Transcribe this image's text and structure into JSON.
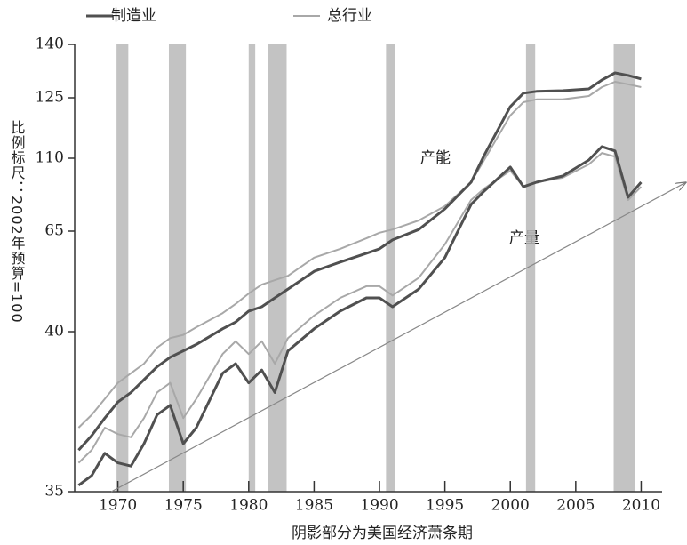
{
  "chart_data": {
    "type": "line",
    "y_label": "比例标尺：2002年预算=100",
    "x_label": "阴影部分为美国经济萧条期",
    "annotations": [
      "产能",
      "产量"
    ],
    "x": [
      1967,
      1968,
      1969,
      1970,
      1971,
      1972,
      1973,
      1974,
      1975,
      1976,
      1978,
      1979,
      1980,
      1981,
      1982,
      1983,
      1985,
      1987,
      1989,
      1990,
      1991,
      1993,
      1995,
      1997,
      1998,
      2000,
      2001,
      2002,
      2004,
      2006,
      2007,
      2008,
      2009,
      2010
    ],
    "series": [
      {
        "name": "总行业",
        "color": "#a8a8a8",
        "capacity": [
          37,
          37.4,
          37.9,
          38.4,
          38.7,
          39,
          39.5,
          39.8,
          39.9,
          41.1,
          44.6,
          46.9,
          49.5,
          51.7,
          52.8,
          53.9,
          58.4,
          60.6,
          63.2,
          64.6,
          66,
          71.6,
          80.4,
          95.2,
          108.9,
          120.6,
          123.9,
          124.6,
          124.6,
          125.5,
          128,
          129.5,
          128.8,
          128
        ],
        "output": [
          35.9,
          36.3,
          37,
          36.8,
          36.7,
          37.3,
          38.1,
          38.4,
          37.3,
          37.9,
          39.3,
          39.7,
          39.3,
          39.7,
          39,
          39.8,
          44,
          48.4,
          51.3,
          51.3,
          49,
          53.4,
          61.7,
          84.2,
          91.3,
          102.3,
          92.4,
          95.2,
          98,
          106.2,
          111.3,
          110.4,
          84.2,
          92.4
        ]
      },
      {
        "name": "制造业",
        "color": "#505050",
        "capacity": [
          36.3,
          36.75,
          37.3,
          37.8,
          38.1,
          38.5,
          38.9,
          39.2,
          39.4,
          39.6,
          40.7,
          42.4,
          45.1,
          46.2,
          48.4,
          50.6,
          55,
          57.3,
          59.5,
          60.6,
          62.8,
          66,
          78.7,
          95.2,
          110.7,
          122.8,
          126.3,
          126.8,
          127,
          127.5,
          130,
          132,
          131.3,
          130.3
        ],
        "output": [
          35.2,
          35.5,
          36.2,
          35.9,
          35.8,
          36.5,
          37.4,
          37.7,
          36.5,
          37,
          38.7,
          39,
          38.4,
          38.8,
          38.1,
          39.4,
          40.7,
          45.1,
          48.4,
          48.4,
          46.2,
          50.6,
          58.4,
          81.5,
          89.7,
          104.5,
          92.4,
          95.2,
          99,
          108.9,
          112.9,
          111.8,
          85.9,
          95.2
        ]
      }
    ],
    "recessions": [
      [
        1969.9,
        1970.8
      ],
      [
        1973.9,
        1975.2
      ],
      [
        1980.0,
        1980.5
      ],
      [
        1981.5,
        1982.9
      ],
      [
        1990.5,
        1991.2
      ],
      [
        2001.2,
        2001.9
      ],
      [
        2007.9,
        2009.5
      ]
    ],
    "recession_color": "#b8b8b8",
    "trend": {
      "x": [
        1969.5,
        2013.4
      ],
      "y": [
        35,
        95
      ]
    },
    "xlim": [
      1966.7,
      2011.6
    ],
    "xticks": [
      1970,
      1975,
      1980,
      1985,
      1990,
      1995,
      2000,
      2005,
      2010
    ],
    "ylim": [
      35,
      140
    ],
    "yticks": [
      35,
      40,
      65,
      110,
      125,
      140
    ]
  }
}
